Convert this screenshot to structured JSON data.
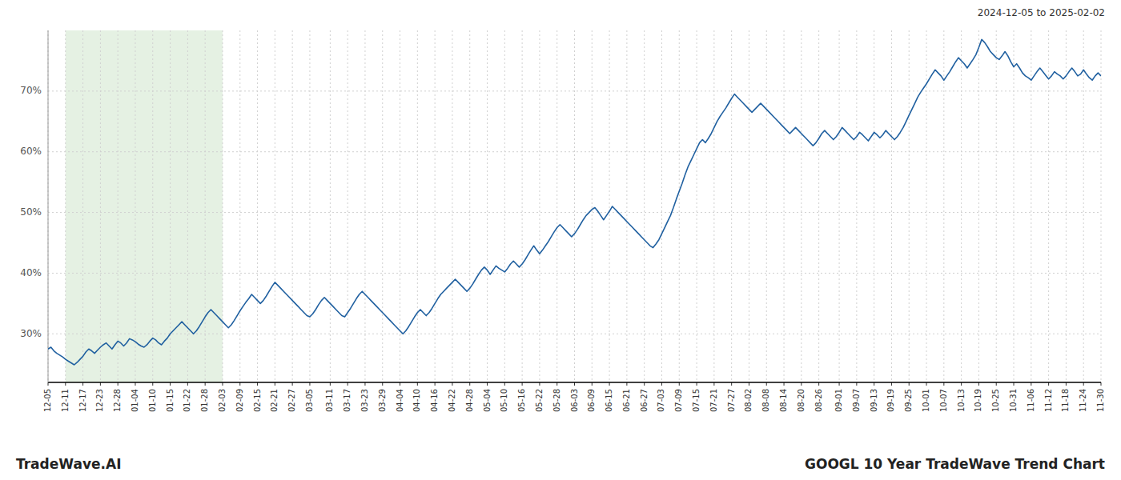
{
  "chart_data": {
    "type": "line",
    "title": "GOOGL 10 Year TradeWave Trend Chart",
    "subtitle": "2024-12-05 to 2025-02-02",
    "annotations": [
      "TradeWave.AI"
    ],
    "color": "#2060a0",
    "grid": true,
    "ylim": [
      22,
      80
    ],
    "yticks": [
      {
        "value": 30,
        "label": "30%"
      },
      {
        "value": 40,
        "label": "40%"
      },
      {
        "value": 50,
        "label": "50%"
      },
      {
        "value": 60,
        "label": "60%"
      },
      {
        "value": 70,
        "label": "70%"
      }
    ],
    "shaded_region": {
      "start": "12-11",
      "end": "02-03",
      "color": "#d4e8d0"
    },
    "categories": [
      "12-05",
      null,
      null,
      null,
      null,
      null,
      "12-11",
      null,
      null,
      null,
      null,
      null,
      "12-17",
      null,
      null,
      null,
      null,
      null,
      "12-23",
      null,
      null,
      null,
      null,
      null,
      "12-28",
      null,
      null,
      null,
      null,
      null,
      "01-04",
      null,
      null,
      null,
      null,
      null,
      "01-10",
      null,
      null,
      null,
      null,
      null,
      "01-15",
      null,
      null,
      null,
      null,
      null,
      "01-22",
      null,
      null,
      null,
      null,
      null,
      "01-28",
      null,
      null,
      null,
      null,
      null,
      "02-03",
      null,
      null,
      null,
      null,
      null,
      "02-09",
      null,
      null,
      null,
      null,
      null,
      "02-15",
      null,
      null,
      null,
      null,
      null,
      "02-21",
      null,
      null,
      null,
      null,
      null,
      "02-27",
      null,
      null,
      null,
      null,
      null,
      "03-05",
      null,
      null,
      null,
      null,
      null,
      null,
      "03-11",
      null,
      null,
      null,
      null,
      null,
      "03-17",
      null,
      null,
      null,
      null,
      null,
      "03-23",
      null,
      null,
      null,
      null,
      null,
      "03-29",
      null,
      null,
      null,
      null,
      null,
      "04-04",
      null,
      null,
      null,
      null,
      null,
      "04-10",
      null,
      null,
      null,
      null,
      null,
      "04-16",
      null,
      null,
      null,
      null,
      null,
      "04-22",
      null,
      null,
      null,
      null,
      null,
      "04-28",
      null,
      null,
      null,
      null,
      null,
      "05-04",
      null,
      null,
      null,
      null,
      null,
      "05-10",
      null,
      null,
      null,
      null,
      null,
      "05-16",
      null,
      null,
      null,
      null,
      null,
      "05-22",
      null,
      null,
      null,
      null,
      null,
      "05-28",
      null,
      null,
      null,
      null,
      null,
      "06-03",
      null,
      null,
      null,
      null,
      null,
      "06-09",
      null,
      null,
      null,
      null,
      null,
      "06-15",
      null,
      null,
      null,
      null,
      null,
      "06-21",
      null,
      null,
      null,
      null,
      null,
      "06-27",
      null,
      null,
      null,
      null,
      null,
      "07-03",
      null,
      null,
      null,
      null,
      null,
      "07-09",
      null,
      null,
      null,
      null,
      null,
      "07-15",
      null,
      null,
      null,
      null,
      null,
      "07-21",
      null,
      null,
      null,
      null,
      null,
      "07-27",
      null,
      null,
      null,
      null,
      null,
      "08-02",
      null,
      null,
      null,
      null,
      null,
      "08-08",
      null,
      null,
      null,
      null,
      null,
      "08-14",
      null,
      null,
      null,
      null,
      null,
      "08-20",
      null,
      null,
      null,
      null,
      null,
      "08-26",
      null,
      null,
      null,
      null,
      null,
      null,
      "09-01",
      null,
      null,
      null,
      null,
      null,
      "09-07",
      null,
      null,
      null,
      null,
      null,
      "09-13",
      null,
      null,
      null,
      null,
      null,
      "09-19",
      null,
      null,
      null,
      null,
      null,
      "09-25",
      null,
      null,
      null,
      null,
      null,
      "10-01",
      null,
      null,
      null,
      null,
      null,
      "10-07",
      null,
      null,
      null,
      null,
      null,
      "10-13",
      null,
      null,
      null,
      null,
      null,
      "10-19",
      null,
      null,
      null,
      null,
      null,
      "10-25",
      null,
      null,
      null,
      null,
      null,
      "10-31",
      null,
      null,
      null,
      null,
      null,
      "11-06",
      null,
      null,
      null,
      null,
      null,
      "11-12",
      null,
      null,
      null,
      null,
      null,
      "11-18",
      null,
      null,
      null,
      null,
      null,
      "11-24",
      null,
      null,
      null,
      null,
      null,
      "11-30"
    ],
    "values": [
      27.5,
      27.8,
      27.2,
      26.8,
      26.5,
      26.2,
      25.8,
      25.5,
      25.2,
      24.9,
      25.3,
      25.8,
      26.3,
      27.0,
      27.5,
      27.2,
      26.8,
      27.3,
      27.8,
      28.2,
      28.5,
      28.0,
      27.5,
      28.2,
      28.8,
      28.5,
      28.0,
      28.5,
      29.2,
      29.0,
      28.7,
      28.3,
      28.0,
      27.8,
      28.2,
      28.8,
      29.3,
      29.0,
      28.5,
      28.2,
      28.8,
      29.3,
      30.0,
      30.5,
      31.0,
      31.5,
      32.0,
      31.5,
      31.0,
      30.5,
      30.0,
      30.5,
      31.2,
      32.0,
      32.8,
      33.5,
      34.0,
      33.5,
      33.0,
      32.5,
      32.0,
      31.5,
      31.0,
      31.5,
      32.2,
      33.0,
      33.8,
      34.5,
      35.2,
      35.8,
      36.5,
      36.0,
      35.5,
      35.0,
      35.5,
      36.2,
      37.0,
      37.8,
      38.5,
      38.0,
      37.5,
      37.0,
      36.5,
      36.0,
      35.5,
      35.0,
      34.5,
      34.0,
      33.5,
      33.0,
      32.8,
      33.3,
      34.0,
      34.8,
      35.5,
      36.0,
      35.5,
      35.0,
      34.5,
      34.0,
      33.5,
      33.0,
      32.8,
      33.5,
      34.2,
      35.0,
      35.8,
      36.5,
      37.0,
      36.5,
      36.0,
      35.5,
      35.0,
      34.5,
      34.0,
      33.5,
      33.0,
      32.5,
      32.0,
      31.5,
      31.0,
      30.5,
      30.0,
      30.5,
      31.2,
      32.0,
      32.8,
      33.5,
      34.0,
      33.5,
      33.0,
      33.5,
      34.2,
      35.0,
      35.8,
      36.5,
      37.0,
      37.5,
      38.0,
      38.5,
      39.0,
      38.5,
      38.0,
      37.5,
      37.0,
      37.5,
      38.2,
      39.0,
      39.8,
      40.5,
      41.0,
      40.5,
      39.8,
      40.5,
      41.2,
      40.8,
      40.5,
      40.2,
      40.8,
      41.5,
      42.0,
      41.5,
      41.0,
      41.5,
      42.2,
      43.0,
      43.8,
      44.5,
      43.8,
      43.2,
      43.8,
      44.5,
      45.2,
      46.0,
      46.8,
      47.5,
      48.0,
      47.5,
      47.0,
      46.5,
      46.0,
      46.5,
      47.2,
      48.0,
      48.8,
      49.5,
      50.0,
      50.5,
      50.8,
      50.2,
      49.5,
      48.8,
      49.5,
      50.2,
      51.0,
      50.5,
      50.0,
      49.5,
      49.0,
      48.5,
      48.0,
      47.5,
      47.0,
      46.5,
      46.0,
      45.5,
      45.0,
      44.5,
      44.2,
      44.8,
      45.5,
      46.5,
      47.5,
      48.5,
      49.5,
      50.8,
      52.2,
      53.5,
      54.8,
      56.2,
      57.5,
      58.5,
      59.5,
      60.5,
      61.5,
      62.0,
      61.5,
      62.2,
      63.0,
      64.0,
      65.0,
      65.8,
      66.5,
      67.2,
      68.0,
      68.8,
      69.5,
      69.0,
      68.5,
      68.0,
      67.5,
      67.0,
      66.5,
      67.0,
      67.5,
      68.0,
      67.5,
      67.0,
      66.5,
      66.0,
      65.5,
      65.0,
      64.5,
      64.0,
      63.5,
      63.0,
      63.5,
      64.0,
      63.5,
      63.0,
      62.5,
      62.0,
      61.5,
      61.0,
      61.5,
      62.2,
      63.0,
      63.5,
      63.0,
      62.5,
      62.0,
      62.5,
      63.2,
      64.0,
      63.5,
      63.0,
      62.5,
      62.0,
      62.5,
      63.2,
      62.8,
      62.3,
      61.8,
      62.5,
      63.2,
      62.8,
      62.3,
      62.8,
      63.5,
      63.0,
      62.5,
      62.0,
      62.5,
      63.2,
      64.0,
      65.0,
      66.0,
      67.0,
      68.0,
      69.0,
      69.8,
      70.5,
      71.2,
      72.0,
      72.8,
      73.5,
      73.0,
      72.5,
      71.8,
      72.5,
      73.2,
      74.0,
      74.8,
      75.5,
      75.0,
      74.5,
      73.8,
      74.5,
      75.2,
      76.0,
      77.2,
      78.5,
      78.0,
      77.3,
      76.5,
      76.0,
      75.5,
      75.2,
      75.8,
      76.5,
      75.8,
      74.8,
      74.0,
      74.5,
      73.8,
      73.0,
      72.5,
      72.2,
      71.8,
      72.5,
      73.2,
      73.8,
      73.2,
      72.6,
      72.0,
      72.5,
      73.2,
      72.8,
      72.5,
      72.0,
      72.5,
      73.2,
      73.8,
      73.2,
      72.5,
      72.8,
      73.5,
      72.8,
      72.2,
      71.8,
      72.5,
      73.0,
      72.5
    ]
  }
}
